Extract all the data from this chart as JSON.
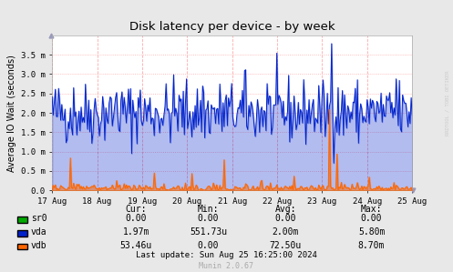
{
  "title": "Disk latency per device - by week",
  "ylabel": "Average IO Wait (seconds)",
  "background_color": "#e8e8e8",
  "plot_background": "#ffffff",
  "grid_color_h": "#ffaaaa",
  "grid_color_v": "#ffaaaa",
  "x_ticks": [
    0,
    86400,
    172800,
    259200,
    345600,
    432000,
    518400,
    604800,
    691200
  ],
  "x_tick_labels": [
    "17 Aug",
    "18 Aug",
    "19 Aug",
    "20 Aug",
    "21 Aug",
    "22 Aug",
    "23 Aug",
    "24 Aug",
    "25 Aug"
  ],
  "y_ticks": [
    0.0,
    0.0005,
    0.001,
    0.0015,
    0.002,
    0.0025,
    0.003,
    0.0035
  ],
  "y_tick_labels": [
    "0.0",
    "0.5 m",
    "1.0 m",
    "1.5 m",
    "2.0 m",
    "2.5 m",
    "3.0 m",
    "3.5 m"
  ],
  "x_min": 0,
  "x_max": 691200,
  "y_min": 0,
  "y_max": 0.004,
  "vda_color": "#0022cc",
  "vdb_color": "#ff6600",
  "sr0_color": "#00aa00",
  "legend_items": [
    {
      "label": "sr0",
      "color": "#00aa00"
    },
    {
      "label": "vda",
      "color": "#0022cc"
    },
    {
      "label": "vdb",
      "color": "#ff6600"
    }
  ],
  "table_headers": [
    "Cur:",
    "Min:",
    "Avg:",
    "Max:"
  ],
  "table_rows": [
    [
      "sr0",
      "0.00",
      "0.00",
      "0.00",
      "0.00"
    ],
    [
      "vda",
      "1.97m",
      "551.73u",
      "2.00m",
      "5.80m"
    ],
    [
      "vdb",
      "53.46u",
      "0.00",
      "72.50u",
      "8.70m"
    ]
  ],
  "last_update": "Last update: Sun Aug 25 16:25:00 2024",
  "munin_version": "Munin 2.0.67",
  "rrdtool_label": "RRDTOOL / TOBI OETIKER"
}
